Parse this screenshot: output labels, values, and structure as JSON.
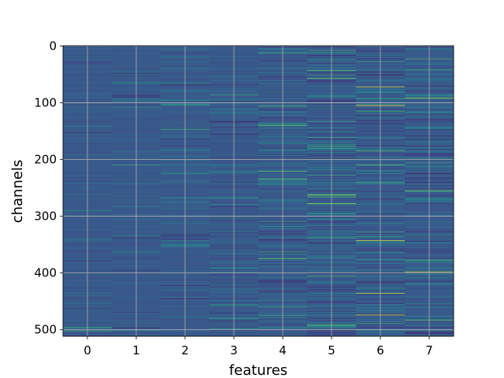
{
  "chart_data": {
    "type": "heatmap",
    "title": "",
    "xlabel": "features",
    "ylabel": "channels",
    "x_categories": [
      "0",
      "1",
      "2",
      "3",
      "4",
      "5",
      "6",
      "7"
    ],
    "y_ticks": [
      0,
      100,
      200,
      300,
      400,
      500
    ],
    "xlim": [
      -0.5,
      7.5
    ],
    "ylim": [
      511.5,
      -0.5
    ],
    "n_rows": 512,
    "n_cols": 8,
    "colormap": "viridis",
    "grid": true,
    "grid_color": "#b0b0b0",
    "column_activity": [
      0.05,
      0.08,
      0.14,
      0.22,
      0.3,
      0.4,
      0.42,
      0.36
    ],
    "highlights": [
      {
        "x": 0,
        "y": 502,
        "level": 0.6
      },
      {
        "x": 1,
        "y": 46,
        "level": 0.45
      },
      {
        "x": 1,
        "y": 363,
        "level": 0.5
      },
      {
        "x": 2,
        "y": 225,
        "level": 0.55
      },
      {
        "x": 2,
        "y": 352,
        "level": 0.5
      },
      {
        "x": 3,
        "y": 86,
        "level": 0.6
      },
      {
        "x": 3,
        "y": 268,
        "level": 0.55
      },
      {
        "x": 4,
        "y": 12,
        "level": 0.6
      },
      {
        "x": 4,
        "y": 106,
        "level": 0.7
      },
      {
        "x": 4,
        "y": 140,
        "level": 0.75
      },
      {
        "x": 4,
        "y": 221,
        "level": 0.75
      },
      {
        "x": 4,
        "y": 234,
        "level": 0.7
      },
      {
        "x": 4,
        "y": 375,
        "level": 0.75
      },
      {
        "x": 4,
        "y": 475,
        "level": 0.6
      },
      {
        "x": 5,
        "y": 43,
        "level": 0.7
      },
      {
        "x": 5,
        "y": 57,
        "level": 0.75
      },
      {
        "x": 5,
        "y": 133,
        "level": 0.6
      },
      {
        "x": 5,
        "y": 262,
        "level": 0.8
      },
      {
        "x": 5,
        "y": 266,
        "level": 0.75
      },
      {
        "x": 5,
        "y": 278,
        "level": 0.85
      },
      {
        "x": 5,
        "y": 406,
        "level": 0.7
      },
      {
        "x": 5,
        "y": 491,
        "level": 0.75
      },
      {
        "x": 6,
        "y": 28,
        "level": 0.6
      },
      {
        "x": 6,
        "y": 72,
        "level": 0.95
      },
      {
        "x": 6,
        "y": 105,
        "level": 1.0
      },
      {
        "x": 6,
        "y": 185,
        "level": 0.75
      },
      {
        "x": 6,
        "y": 210,
        "level": 0.7
      },
      {
        "x": 6,
        "y": 343,
        "level": 0.95
      },
      {
        "x": 6,
        "y": 436,
        "level": 0.9
      },
      {
        "x": 6,
        "y": 474,
        "level": 0.95
      },
      {
        "x": 7,
        "y": 92,
        "level": 0.85
      },
      {
        "x": 7,
        "y": 255,
        "level": 0.8
      },
      {
        "x": 7,
        "y": 378,
        "level": 0.7
      },
      {
        "x": 7,
        "y": 398,
        "level": 0.9
      },
      {
        "x": 7,
        "y": 483,
        "level": 0.75
      }
    ]
  }
}
